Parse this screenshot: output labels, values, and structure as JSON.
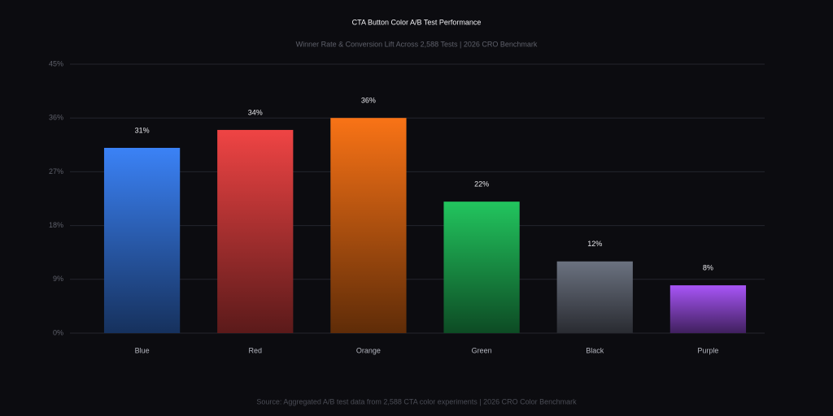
{
  "chart_data": {
    "type": "bar",
    "title": "CTA Button Color A/B Test Performance",
    "subtitle": "Winner Rate & Conversion Lift Across 2,588 Tests | 2026 CRO Benchmark",
    "source": "Source: Aggregated A/B test data from 2,588 CTA color experiments | 2026 CRO Color Benchmark",
    "categories": [
      "Blue",
      "Red",
      "Orange",
      "Green",
      "Black",
      "Purple"
    ],
    "values": [
      31,
      34,
      36,
      22,
      12,
      8
    ],
    "value_labels": [
      "31%",
      "34%",
      "36%",
      "22%",
      "12%",
      "8%"
    ],
    "colors": [
      "#3b82f6",
      "#ef4444",
      "#f97316",
      "#22c55e",
      "#6b7280",
      "#a855f7"
    ],
    "ylim": [
      0,
      45
    ],
    "yticks": [
      {
        "value": 0,
        "label": "0%"
      },
      {
        "value": 9,
        "label": "9%"
      },
      {
        "value": 18,
        "label": "18%"
      },
      {
        "value": 27,
        "label": "27%"
      },
      {
        "value": 36,
        "label": "36%"
      },
      {
        "value": 45,
        "label": "45%"
      }
    ],
    "grid": true
  }
}
